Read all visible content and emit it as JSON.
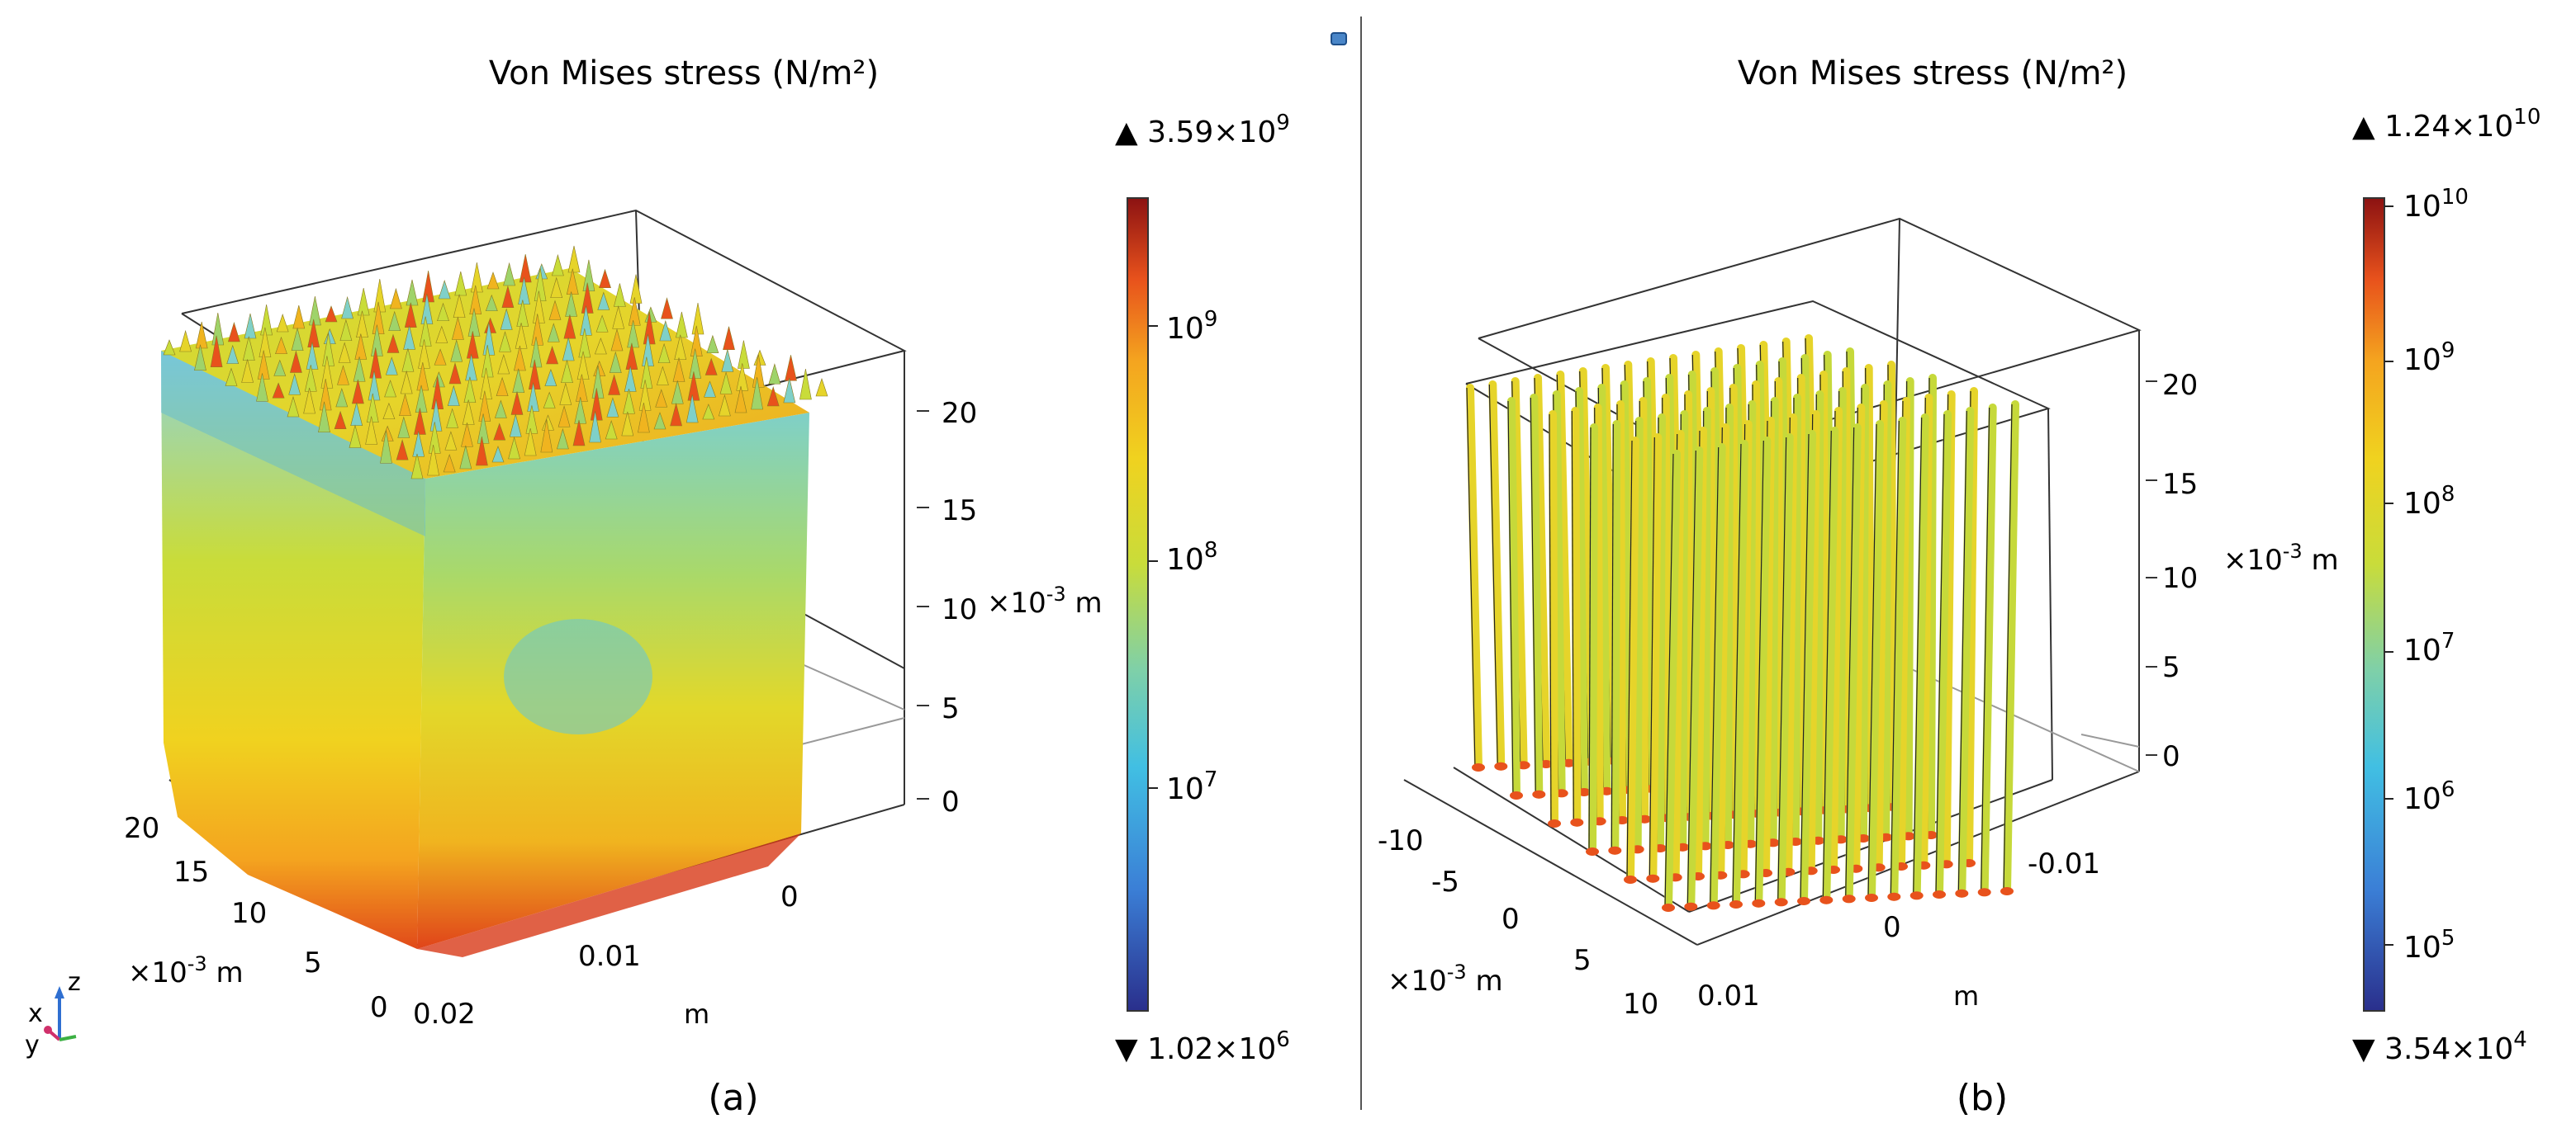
{
  "panels": [
    {
      "id": "a",
      "title": "Von Mises stress (N/m²)",
      "caption": "(a)",
      "colorbar": {
        "max_label": "3.59×10",
        "max_exp": "9",
        "min_label": "1.02×10",
        "min_exp": "6",
        "ticks": [
          {
            "base": "10",
            "exp": "9"
          },
          {
            "base": "10",
            "exp": "8"
          },
          {
            "base": "10",
            "exp": "7"
          }
        ]
      },
      "z_axis": {
        "ticks": [
          "20",
          "15",
          "10",
          "5",
          "0"
        ],
        "unit_prefix": "×10",
        "unit_exp": "-3",
        "unit_suffix": " m"
      },
      "y_axis": {
        "ticks": [
          "20",
          "15",
          "10",
          "5",
          "0"
        ],
        "unit_prefix": "×10",
        "unit_exp": "-3",
        "unit_suffix": " m"
      },
      "x_axis": {
        "ticks": [
          "0.02",
          "0.01",
          "0"
        ],
        "unit": "m"
      }
    },
    {
      "id": "b",
      "title": "Von Mises stress (N/m²)",
      "caption": "(b)",
      "colorbar": {
        "max_label": "1.24×10",
        "max_exp": "10",
        "min_label": "3.54×10",
        "min_exp": "4",
        "ticks": [
          {
            "base": "10",
            "exp": "10"
          },
          {
            "base": "10",
            "exp": "9"
          },
          {
            "base": "10",
            "exp": "8"
          },
          {
            "base": "10",
            "exp": "7"
          },
          {
            "base": "10",
            "exp": "6"
          },
          {
            "base": "10",
            "exp": "5"
          }
        ]
      },
      "z_axis": {
        "ticks": [
          "20",
          "15",
          "10",
          "5",
          "0"
        ],
        "unit_prefix": "×10",
        "unit_exp": "-3",
        "unit_suffix": " m"
      },
      "y_axis": {
        "ticks": [
          "-10",
          "-5",
          "0",
          "5",
          "10"
        ],
        "unit_prefix": "×10",
        "unit_exp": "-3",
        "unit_suffix": " m"
      },
      "x_axis": {
        "ticks": [
          "0.01",
          "0",
          "-0.01"
        ],
        "unit": "m"
      }
    }
  ],
  "triad": {
    "x": "x",
    "y": "y",
    "z": "z"
  },
  "colors": {
    "jet": [
      "#2a2f8c",
      "#3b7fd6",
      "#41bfe3",
      "#7fd0a8",
      "#c9dc3a",
      "#f0d21f",
      "#f4a41f",
      "#e8521c",
      "#8c1212"
    ],
    "frame": "#333333",
    "triad_x": "#d0306b",
    "triad_y": "#3cb043",
    "triad_z": "#2f6fd1"
  }
}
